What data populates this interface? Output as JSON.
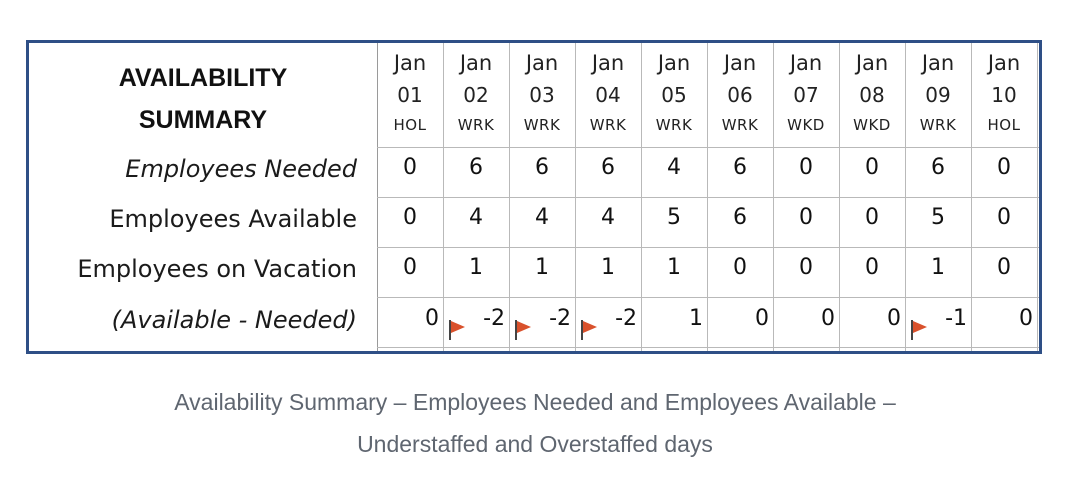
{
  "title_lines": [
    "AVAILABILITY",
    "SUMMARY"
  ],
  "row_labels": {
    "needed": "Employees Needed",
    "available": "Employees Available",
    "vacation": "Employees on Vacation",
    "difference": "(Available - Needed)"
  },
  "columns": [
    {
      "month": "Jan",
      "day": "01",
      "type": "HOL",
      "needed": "0",
      "available": "0",
      "vacation": "0",
      "difference": "0",
      "flag": false
    },
    {
      "month": "Jan",
      "day": "02",
      "type": "WRK",
      "needed": "6",
      "available": "4",
      "vacation": "1",
      "difference": "-2",
      "flag": true
    },
    {
      "month": "Jan",
      "day": "03",
      "type": "WRK",
      "needed": "6",
      "available": "4",
      "vacation": "1",
      "difference": "-2",
      "flag": true
    },
    {
      "month": "Jan",
      "day": "04",
      "type": "WRK",
      "needed": "6",
      "available": "4",
      "vacation": "1",
      "difference": "-2",
      "flag": true
    },
    {
      "month": "Jan",
      "day": "05",
      "type": "WRK",
      "needed": "4",
      "available": "5",
      "vacation": "1",
      "difference": "1",
      "flag": false
    },
    {
      "month": "Jan",
      "day": "06",
      "type": "WRK",
      "needed": "6",
      "available": "6",
      "vacation": "0",
      "difference": "0",
      "flag": false
    },
    {
      "month": "Jan",
      "day": "07",
      "type": "WKD",
      "needed": "0",
      "available": "0",
      "vacation": "0",
      "difference": "0",
      "flag": false
    },
    {
      "month": "Jan",
      "day": "08",
      "type": "WKD",
      "needed": "0",
      "available": "0",
      "vacation": "0",
      "difference": "0",
      "flag": false
    },
    {
      "month": "Jan",
      "day": "09",
      "type": "WRK",
      "needed": "6",
      "available": "5",
      "vacation": "1",
      "difference": "-1",
      "flag": true
    },
    {
      "month": "Jan",
      "day": "10",
      "type": "HOL",
      "needed": "0",
      "available": "0",
      "vacation": "0",
      "difference": "0",
      "flag": false
    }
  ],
  "flag_color": "#d9512c",
  "border_color": "#2e4f86",
  "caption_lines": [
    "Availability Summary – Employees Needed and Employees Available –",
    "Understaffed and Overstaffed days"
  ]
}
